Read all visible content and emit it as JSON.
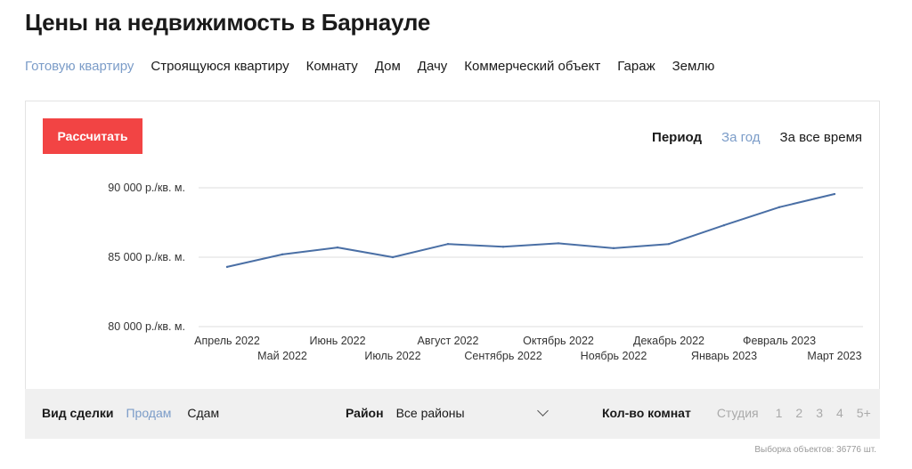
{
  "page": {
    "title": "Цены на недвижимость в Барнауле"
  },
  "property_tabs": [
    {
      "label": "Готовую квартиру",
      "active": true
    },
    {
      "label": "Строящуюся квартиру",
      "active": false
    },
    {
      "label": "Комнату",
      "active": false
    },
    {
      "label": "Дом",
      "active": false
    },
    {
      "label": "Дачу",
      "active": false
    },
    {
      "label": "Коммерческий объект",
      "active": false
    },
    {
      "label": "Гараж",
      "active": false
    },
    {
      "label": "Землю",
      "active": false
    }
  ],
  "calc_button": {
    "label": "Рассчитать"
  },
  "period": {
    "label": "Период",
    "options": [
      {
        "label": "За год",
        "active": true
      },
      {
        "label": "За все время",
        "active": false
      }
    ]
  },
  "chart_data": {
    "type": "line",
    "title": "",
    "xlabel": "",
    "ylabel": "",
    "categories": [
      "Апрель 2022",
      "Май 2022",
      "Июнь 2022",
      "Июль 2022",
      "Август 2022",
      "Сентябрь 2022",
      "Октябрь 2022",
      "Ноябрь 2022",
      "Декабрь 2022",
      "Январь 2023",
      "Февраль 2023",
      "Март 2023"
    ],
    "series": [
      {
        "values": [
          84300,
          85200,
          85700,
          85000,
          85950,
          85750,
          86000,
          85650,
          85950,
          87300,
          88600,
          89550
        ]
      }
    ],
    "y_ticks": [
      {
        "value": 90000,
        "label": "90 000 р./кв. м."
      },
      {
        "value": 85000,
        "label": "85 000 р./кв. м."
      },
      {
        "value": 80000,
        "label": "80 000 р./кв. м."
      }
    ],
    "ylim": [
      80000,
      90000
    ],
    "grid": true,
    "line_color": "#4a6fa5"
  },
  "filters": {
    "deal": {
      "label": "Вид сделки",
      "options": [
        {
          "label": "Продам",
          "active": true
        },
        {
          "label": "Сдам",
          "active": false
        }
      ]
    },
    "district": {
      "label": "Район",
      "value": "Все районы"
    },
    "rooms": {
      "label": "Кол-во комнат",
      "options": [
        "Студия",
        "1",
        "2",
        "3",
        "4",
        "5+"
      ]
    }
  },
  "footnote": "Выборка объектов: 36776 шт."
}
